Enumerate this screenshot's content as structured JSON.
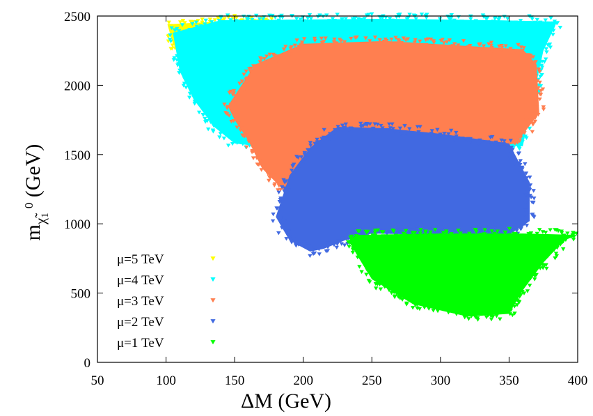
{
  "chart_data": {
    "type": "scatter",
    "title": "",
    "xlabel": "ΔM (GeV)",
    "ylabel_parts": {
      "main": "m",
      "sub": "χ̃",
      "subsub": "1",
      "sup": "0",
      "unit": " (GeV)"
    },
    "xlim": [
      50,
      400
    ],
    "ylim": [
      0,
      2500
    ],
    "x_ticks": [
      "50",
      "100",
      "150",
      "200",
      "250",
      "300",
      "350",
      "400"
    ],
    "y_ticks": [
      "0",
      "500",
      "1000",
      "1500",
      "2000",
      "2500"
    ],
    "grid": false,
    "legend_position": "bottom-left",
    "marker": "triangle-down",
    "series": [
      {
        "name": "μ=5 TeV",
        "color": "#ffff00",
        "regions": [
          {
            "boundary": [
              [
                101,
                2440
              ],
              [
                175,
                2480
              ],
              [
                175,
                2300
              ],
              [
                160,
                2050
              ],
              [
                135,
                2000
              ],
              [
                120,
                2100
              ],
              [
                105,
                2300
              ]
            ]
          }
        ]
      },
      {
        "name": "μ=4 TeV",
        "color": "#00ffff",
        "regions": [
          {
            "boundary": [
              [
                105,
                2380
              ],
              [
                140,
                2470
              ],
              [
                260,
                2480
              ],
              [
                340,
                2470
              ],
              [
                385,
                2460
              ],
              [
                375,
                2250
              ],
              [
                360,
                1560
              ],
              [
                250,
                1580
              ],
              [
                185,
                1540
              ],
              [
                150,
                1580
              ],
              [
                135,
                1700
              ],
              [
                120,
                1900
              ],
              [
                110,
                2100
              ]
            ]
          }
        ]
      },
      {
        "name": "μ=3 TeV",
        "color": "#ff7f50",
        "regions": [
          {
            "boundary": [
              [
                145,
                1850
              ],
              [
                165,
                2150
              ],
              [
                200,
                2300
              ],
              [
                260,
                2320
              ],
              [
                360,
                2260
              ],
              [
                370,
                2150
              ],
              [
                372,
                1800
              ],
              [
                355,
                1580
              ],
              [
                300,
                1500
              ],
              [
                250,
                1450
              ],
              [
                228,
                1250
              ],
              [
                210,
                1180
              ],
              [
                185,
                1250
              ],
              [
                170,
                1400
              ],
              [
                160,
                1600
              ],
              [
                150,
                1750
              ]
            ]
          }
        ]
      },
      {
        "name": "μ=2 TeV",
        "color": "#4169e1",
        "regions": [
          {
            "boundary": [
              [
                180,
                1050
              ],
              [
                190,
                1350
              ],
              [
                205,
                1550
              ],
              [
                225,
                1700
              ],
              [
                260,
                1690
              ],
              [
                300,
                1650
              ],
              [
                350,
                1580
              ],
              [
                365,
                1300
              ],
              [
                365,
                1020
              ],
              [
                350,
                920
              ],
              [
                300,
                920
              ],
              [
                250,
                930
              ],
              [
                230,
                880
              ],
              [
                215,
                820
              ],
              [
                205,
                800
              ],
              [
                190,
                880
              ]
            ]
          }
        ]
      },
      {
        "name": "μ=1 TeV",
        "color": "#00ff00",
        "regions": [
          {
            "boundary": [
              [
                238,
                920
              ],
              [
                300,
                930
              ],
              [
                360,
                930
              ],
              [
                400,
                920
              ],
              [
                390,
                880
              ],
              [
                375,
                720
              ],
              [
                360,
                520
              ],
              [
                350,
                350
              ],
              [
                320,
                330
              ],
              [
                280,
                420
              ],
              [
                250,
                600
              ],
              [
                240,
                760
              ],
              [
                233,
                880
              ]
            ]
          }
        ]
      }
    ]
  }
}
